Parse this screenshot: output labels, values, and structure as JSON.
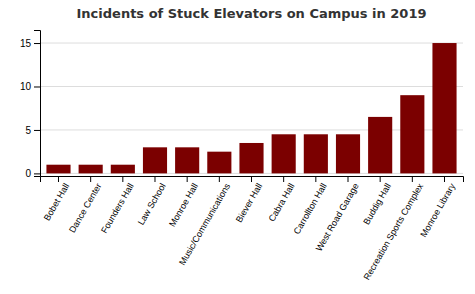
{
  "chart_data": {
    "type": "bar",
    "title": "Incidents of Stuck Elevators on Campus in 2019",
    "categories": [
      "Bobet Hall",
      "Dance Center",
      "Founders Hall",
      "Law School",
      "Monroe Hall",
      "Music/Communications",
      "Biever Hall",
      "Cabra Hall",
      "Carrollton Hall",
      "West Road Garage",
      "Buddig Hall",
      "Recreation Sports Complex",
      "Monroe Library"
    ],
    "values": [
      1,
      1,
      1,
      3,
      3,
      2.5,
      3.5,
      4.5,
      4.5,
      4.5,
      6.5,
      9,
      15
    ],
    "color": "#7B0000",
    "ylim": [
      -0.3,
      16.5
    ],
    "yticks": [
      0,
      5,
      10,
      15
    ],
    "grid": true
  }
}
